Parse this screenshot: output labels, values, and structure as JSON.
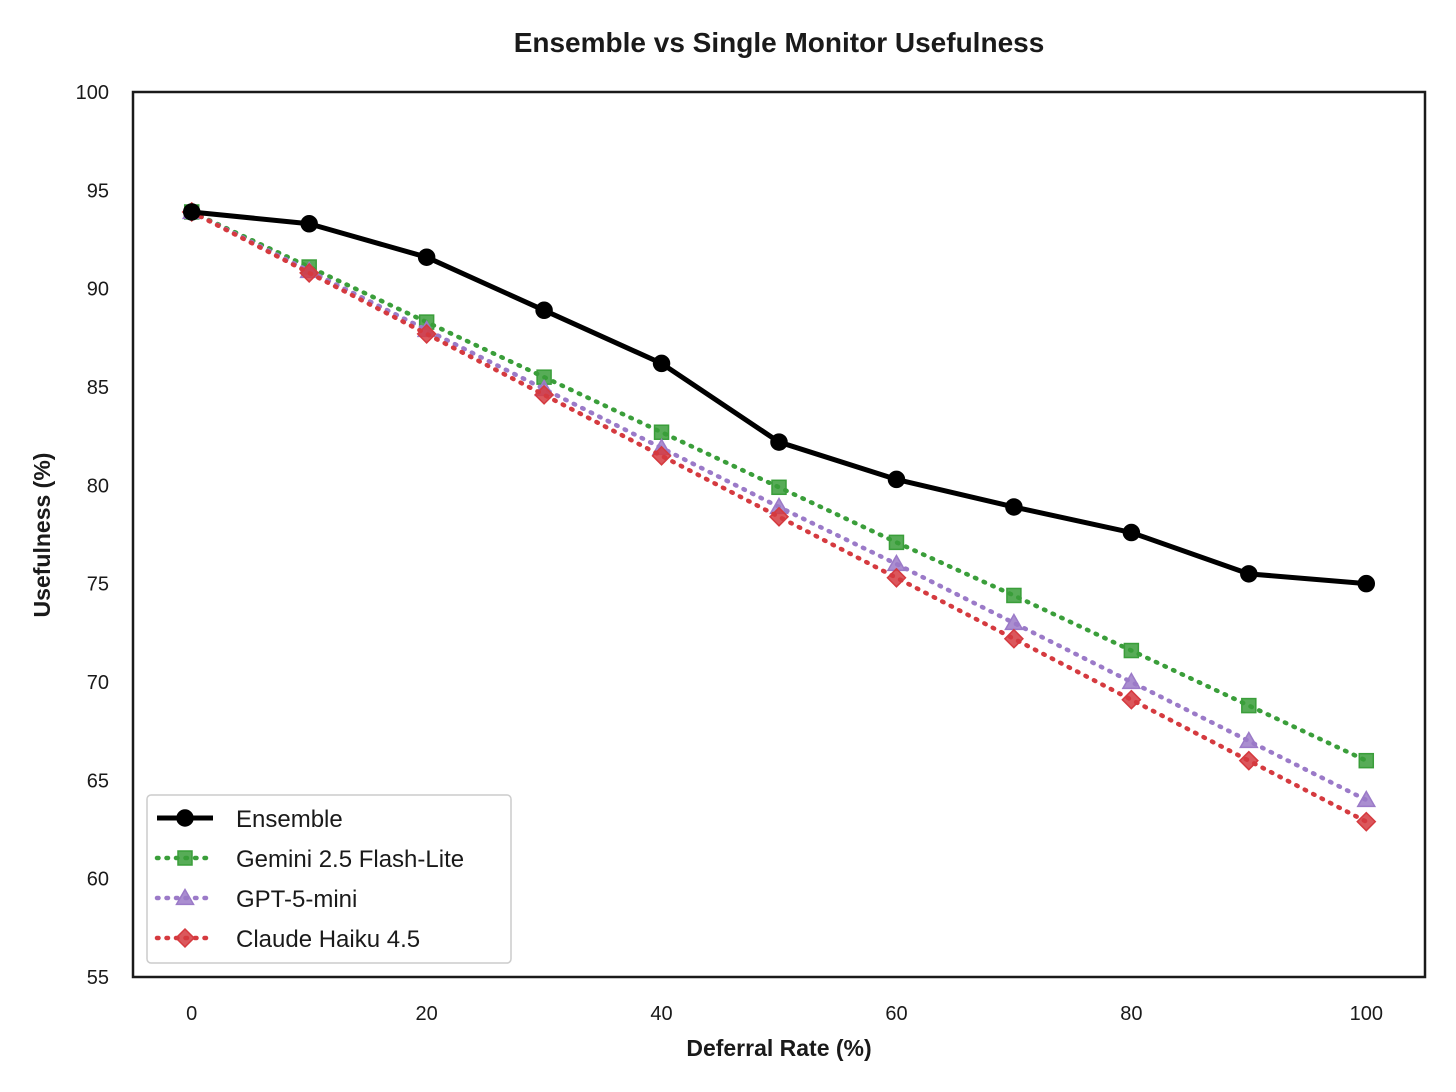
{
  "chart_data": {
    "type": "line",
    "title": "Ensemble vs Single Monitor Usefulness",
    "xlabel": "Deferral Rate (%)",
    "ylabel": "Usefulness (%)",
    "xlim": [
      -5,
      105
    ],
    "ylim": [
      55,
      100
    ],
    "x_ticks": [
      0,
      20,
      40,
      60,
      80,
      100
    ],
    "y_ticks": [
      55,
      60,
      65,
      70,
      75,
      80,
      85,
      90,
      95,
      100
    ],
    "x": [
      0,
      10,
      20,
      30,
      40,
      50,
      60,
      70,
      80,
      90,
      100
    ],
    "grid": false,
    "legend_position": "lower-left",
    "series": [
      {
        "name": "Ensemble",
        "color": "#000000",
        "line_style": "solid",
        "marker": "circle",
        "values": [
          93.9,
          93.3,
          91.6,
          88.9,
          86.2,
          82.2,
          80.3,
          78.9,
          77.6,
          75.5,
          75.0
        ]
      },
      {
        "name": "Gemini 2.5 Flash-Lite",
        "color": "#3a9e3a",
        "line_style": "dotted",
        "marker": "square",
        "values": [
          93.9,
          91.1,
          88.3,
          85.5,
          82.7,
          79.9,
          77.1,
          74.4,
          71.6,
          68.8,
          66.0
        ]
      },
      {
        "name": "GPT-5-mini",
        "color": "#9b7ac8",
        "line_style": "dotted",
        "marker": "triangle",
        "values": [
          93.9,
          90.9,
          87.9,
          84.9,
          81.9,
          78.9,
          76.0,
          73.0,
          70.0,
          67.0,
          64.0
        ]
      },
      {
        "name": "Claude Haiku 4.5",
        "color": "#d53a3f",
        "line_style": "dotted",
        "marker": "diamond",
        "values": [
          93.9,
          90.8,
          87.7,
          84.6,
          81.5,
          78.4,
          75.3,
          72.2,
          69.1,
          66.0,
          62.9
        ]
      }
    ]
  }
}
